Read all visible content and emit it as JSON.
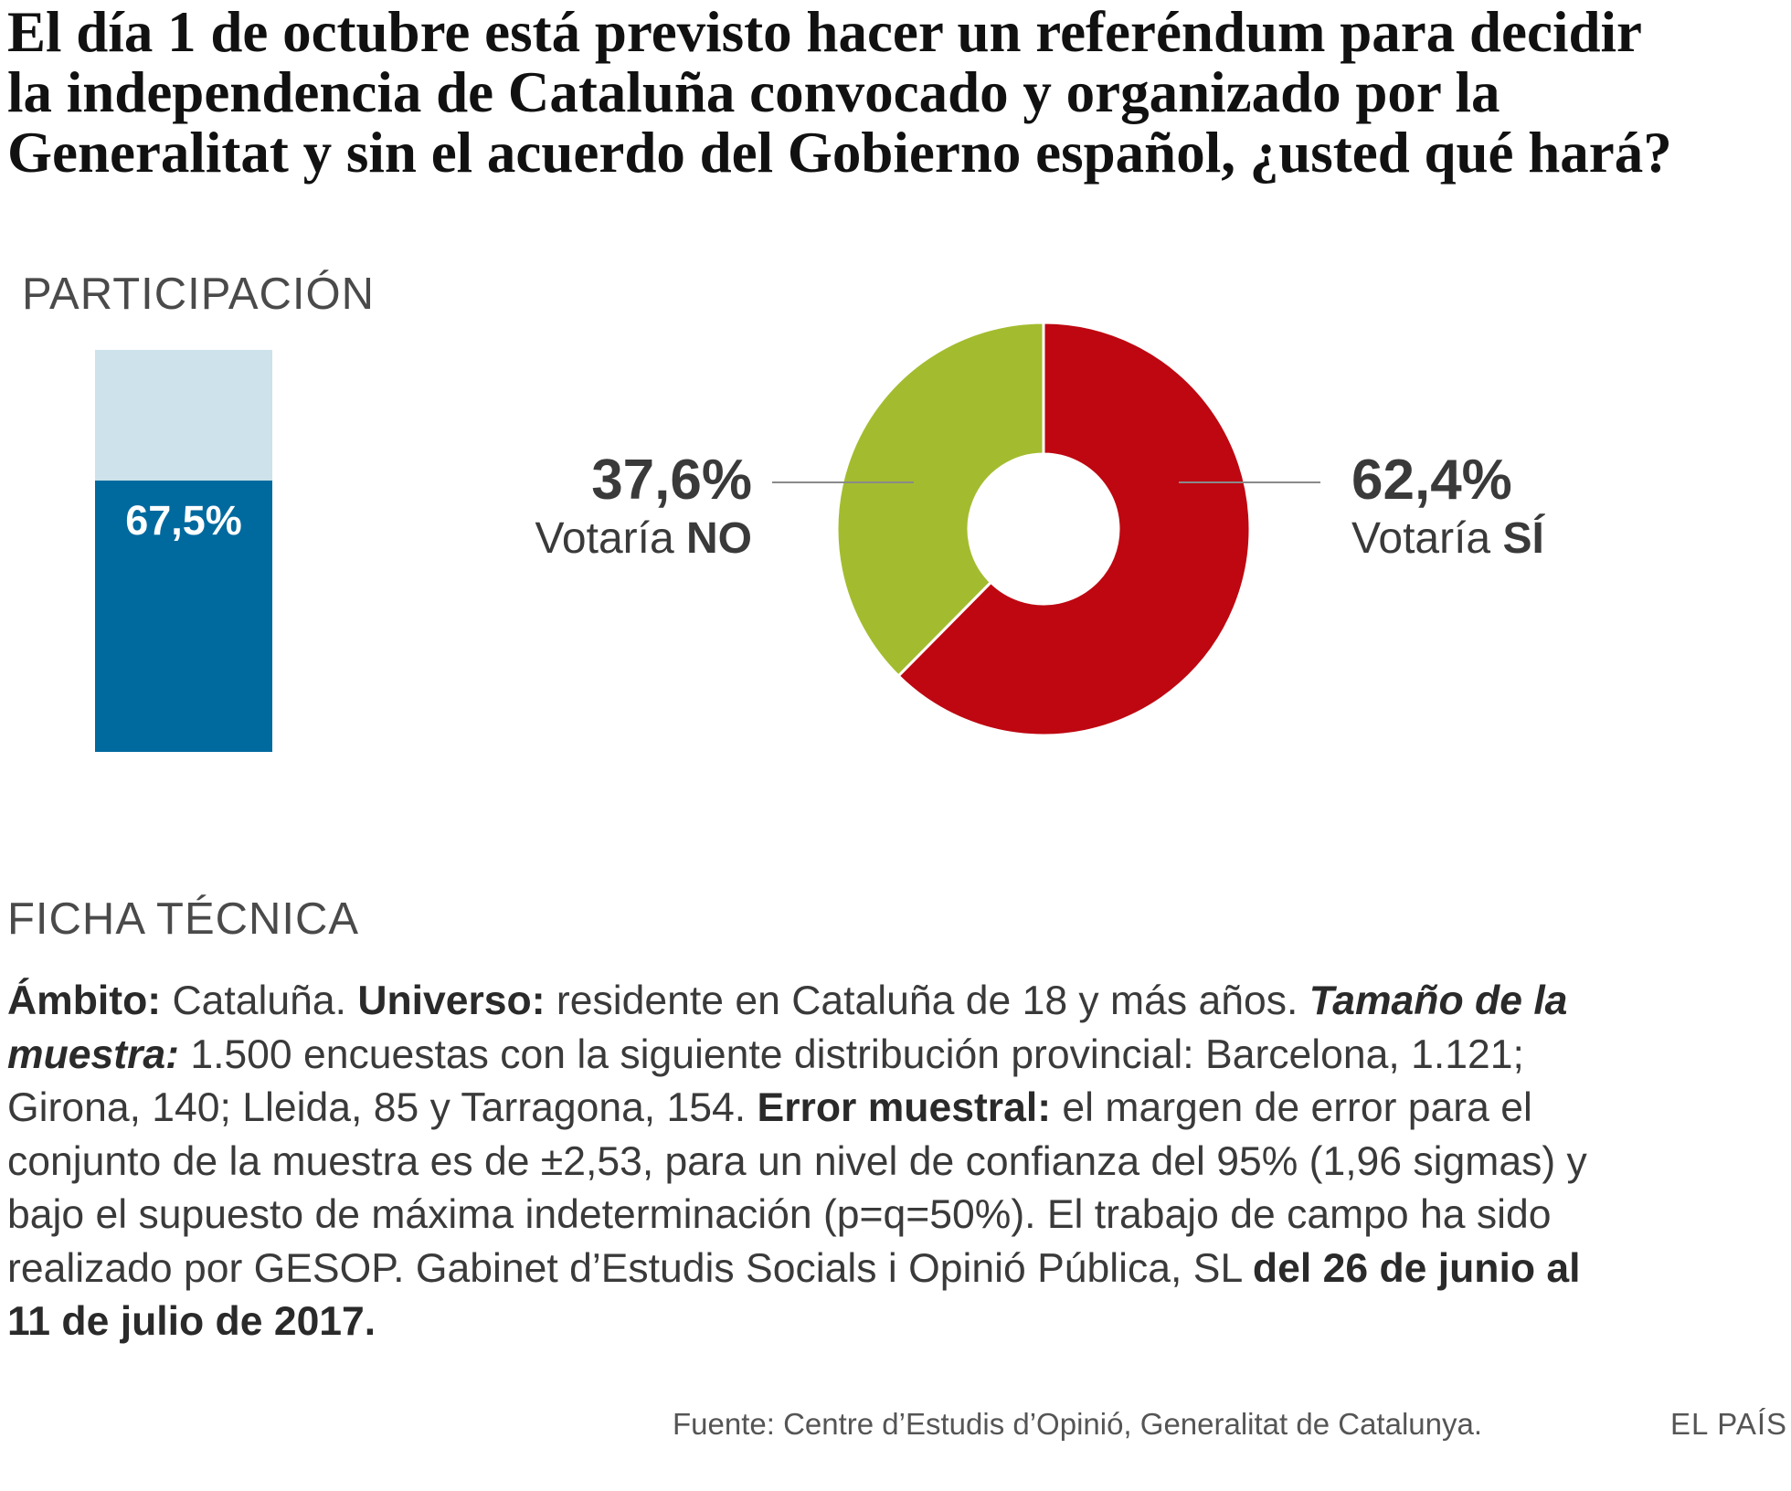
{
  "title": {
    "line1": "El día 1 de octubre está previsto hacer un referéndum para decidir",
    "line2": "la independencia de Cataluña convocado y organizado por la",
    "line3": "Generalitat y sin el acuerdo del Gobierno español, ¿usted qué hará?"
  },
  "participation": {
    "label": "PARTICIPACIÓN",
    "value": 67.5,
    "value_label": "67,5%",
    "colors": {
      "fill": "#006a9f",
      "background": "#cde2ea"
    }
  },
  "chart_data": {
    "type": "pie",
    "style": "donut",
    "slices": [
      {
        "value": 62.4,
        "pct_label": "62,4%",
        "sub_prefix": "Votaría ",
        "sub_strong": "SÍ",
        "color": "#be0711"
      },
      {
        "value": 37.6,
        "pct_label": "37,6%",
        "sub_prefix": "Votaría ",
        "sub_strong": "NO",
        "color": "#a3bc2f"
      }
    ]
  },
  "ficha": {
    "label": "FICHA TÉCNICA",
    "lines": [
      [
        {
          "t": "Ámbito:",
          "s": "b"
        },
        {
          "t": " Cataluña. ",
          "s": ""
        },
        {
          "t": "Universo:",
          "s": "b"
        },
        {
          "t": " residente en Cataluña de 18 y más años. ",
          "s": ""
        },
        {
          "t": "Tamaño de la",
          "s": "bi"
        }
      ],
      [
        {
          "t": "muestra:",
          "s": "bi"
        },
        {
          "t": " 1.500 encuestas con la siguiente distribución provincial: Barcelona, 1.121;",
          "s": ""
        }
      ],
      [
        {
          "t": "Girona, 140; Lleida, 85 y Tarragona, 154. ",
          "s": ""
        },
        {
          "t": "Error muestral:",
          "s": "b"
        },
        {
          "t": " el margen de error para el",
          "s": ""
        }
      ],
      [
        {
          "t": "conjunto de la muestra es de ±2,53, para un nivel de confianza del 95% (1,96 sigmas) y",
          "s": ""
        }
      ],
      [
        {
          "t": "bajo el supuesto de máxima indeterminación (p=q=50%). El trabajo de campo ha sido",
          "s": ""
        }
      ],
      [
        {
          "t": "realizado por GESOP. Gabinet d’Estudis Socials i Opinió Pública, SL ",
          "s": ""
        },
        {
          "t": "del 26 de junio al",
          "s": "b"
        }
      ],
      [
        {
          "t": "11 de julio de 2017.",
          "s": "b"
        }
      ]
    ]
  },
  "source": "Fuente: Centre d’Estudis d’Opinió, Generalitat de Catalunya.",
  "brand": "EL PAÍS"
}
